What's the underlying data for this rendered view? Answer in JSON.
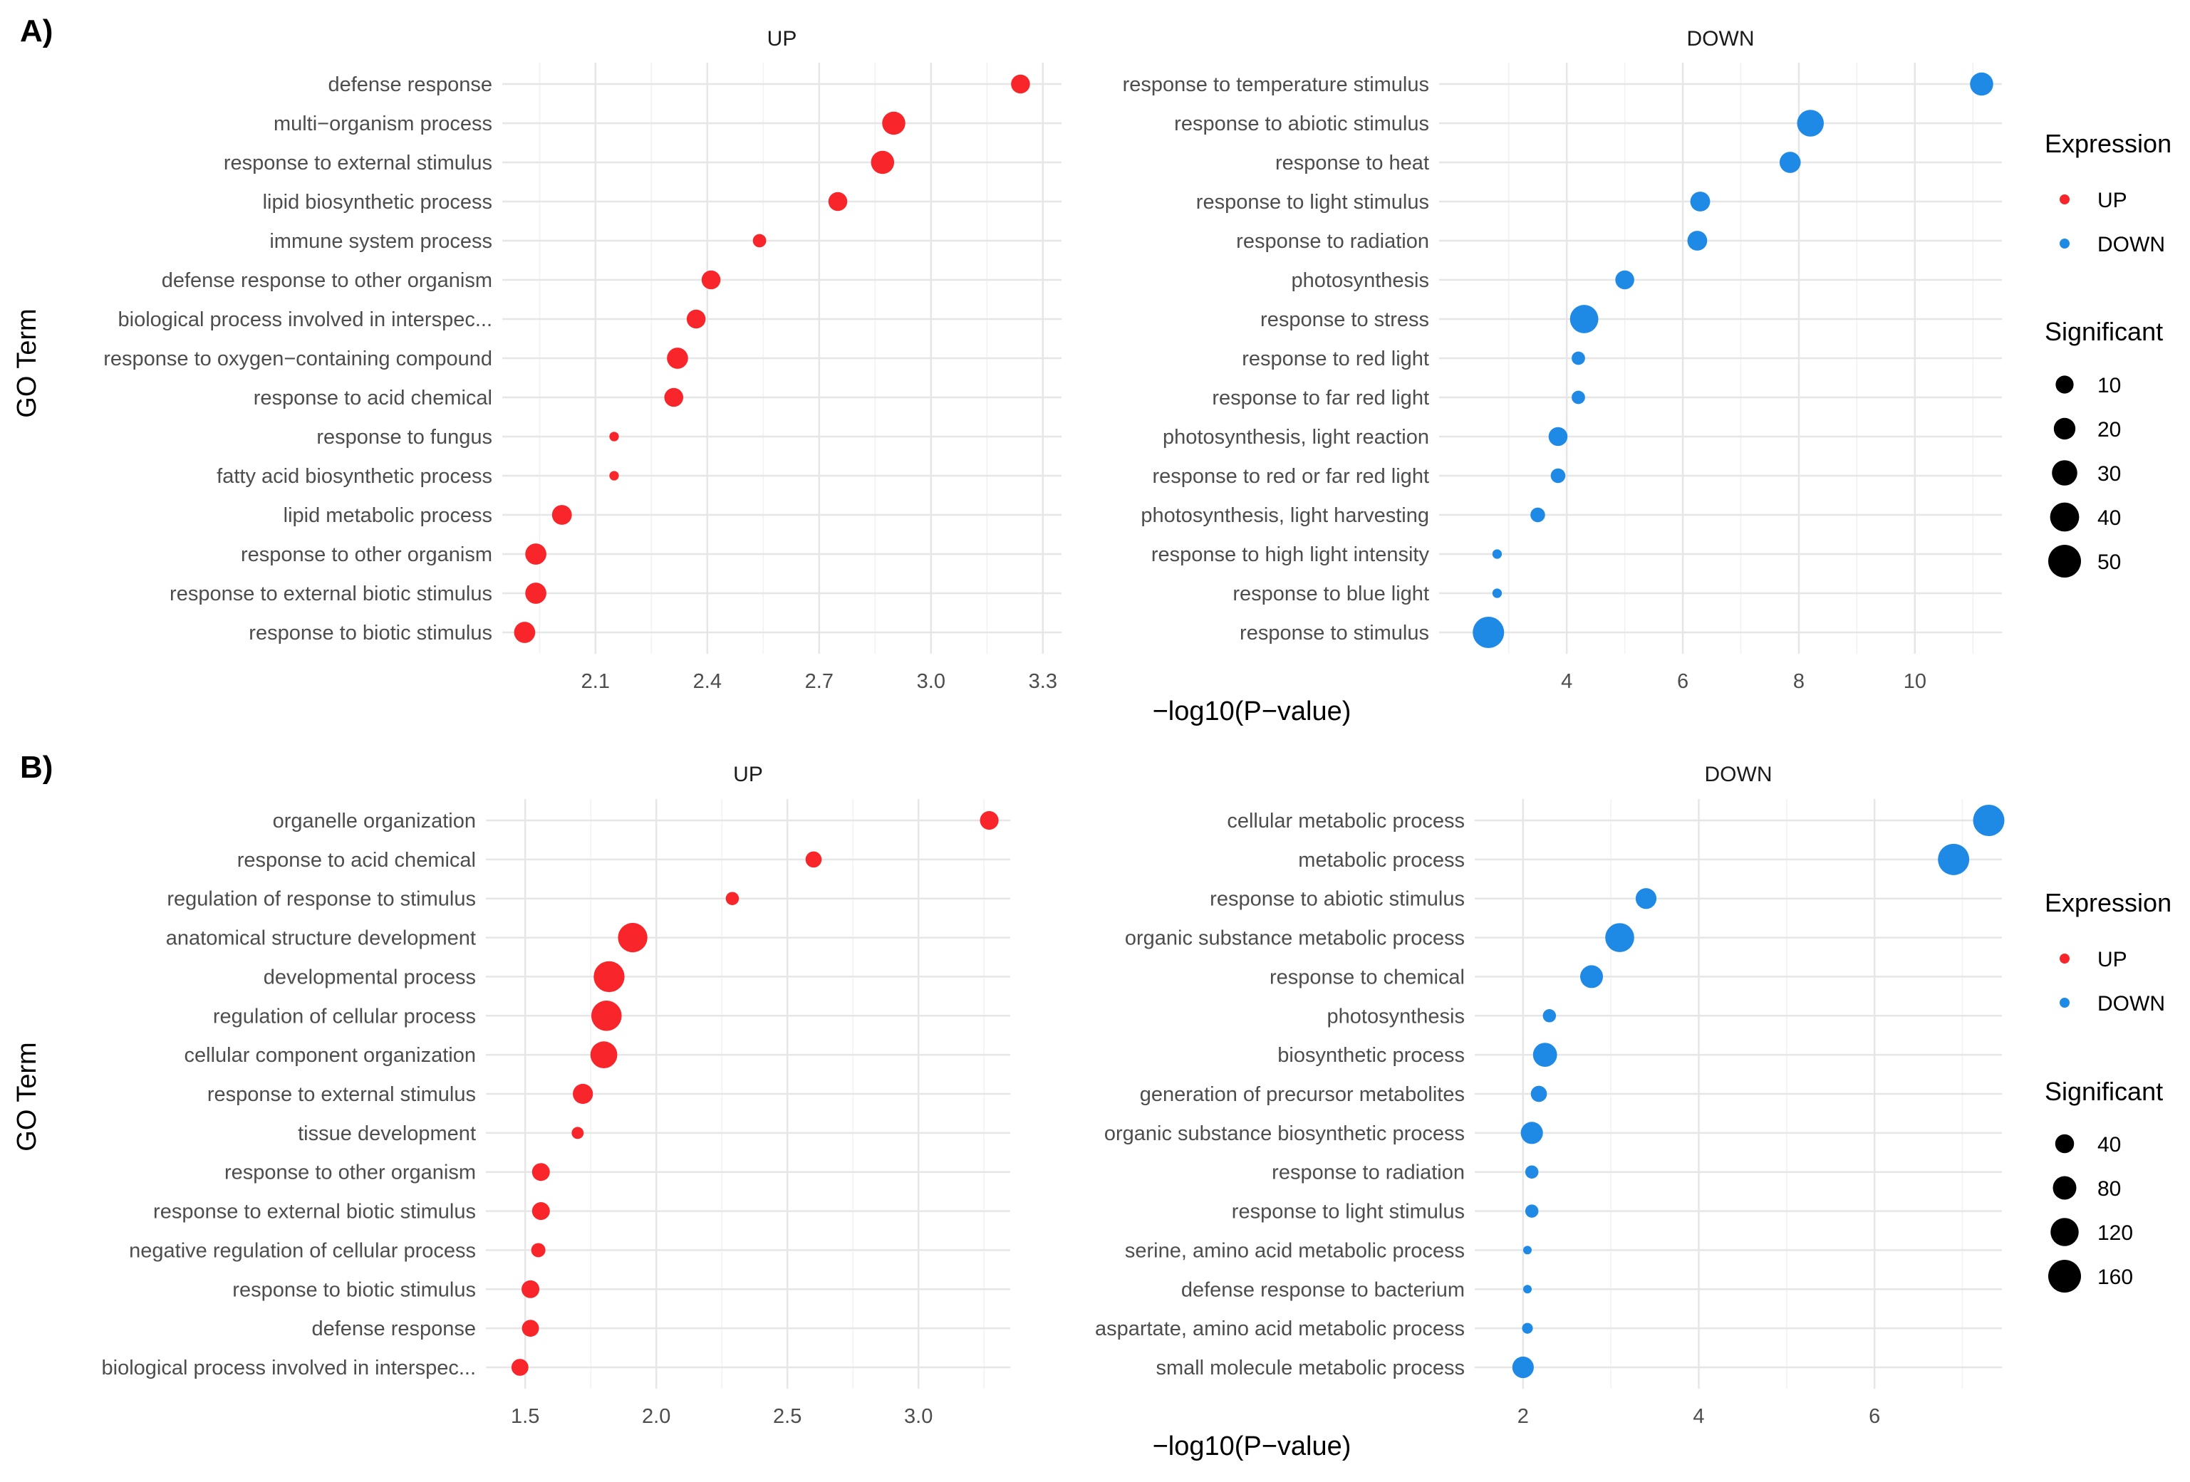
{
  "figure": {
    "panel_labels": [
      "A)",
      "B)"
    ]
  },
  "chart_data": [
    {
      "type": "scatter",
      "panel": "A)",
      "facet": "UP",
      "xlabel": "−log10(P−value)",
      "ylabel": "GO Term",
      "xlim": [
        1.85,
        3.35
      ],
      "xticks": [
        "2.1",
        "2.4",
        "2.7",
        "3.0",
        "3.3"
      ],
      "color": "#f8262b",
      "categories": [
        "defense response",
        "multi−organism process",
        "response to external stimulus",
        "lipid biosynthetic process",
        "immune system process",
        "defense response to other organism",
        "biological process involved in interspec...",
        "response to oxygen−containing compound",
        "response to acid chemical",
        "response to fungus",
        "fatty acid biosynthetic process",
        "lipid metabolic process",
        "response to other organism",
        "response to external biotic stimulus",
        "response to biotic stimulus"
      ],
      "x": [
        3.24,
        2.9,
        2.87,
        2.75,
        2.54,
        2.41,
        2.37,
        2.32,
        2.31,
        2.15,
        2.15,
        2.01,
        1.94,
        1.94,
        1.91
      ],
      "size": [
        20,
        30,
        30,
        20,
        10,
        20,
        20,
        25,
        20,
        5,
        5,
        22,
        25,
        25,
        25
      ]
    },
    {
      "type": "scatter",
      "panel": "A)",
      "facet": "DOWN",
      "xlabel": "−log10(P−value)",
      "ylabel": "GO Term",
      "xlim": [
        1.8,
        11.5
      ],
      "xticks": [
        "4",
        "6",
        "8",
        "10"
      ],
      "color": "#1f89e6",
      "categories": [
        "response to temperature stimulus",
        "response to abiotic stimulus",
        "response to heat",
        "response to light stimulus",
        "response to radiation",
        "photosynthesis",
        "response to stress",
        "response to red light",
        "response to far red light",
        "photosynthesis, light reaction",
        "response to red or far red light",
        "photosynthesis, light harvesting",
        "response to high light intensity",
        "response to blue light",
        "response to stimulus"
      ],
      "x": [
        11.15,
        8.2,
        7.85,
        6.3,
        6.25,
        5.0,
        4.3,
        4.2,
        4.2,
        3.85,
        3.85,
        3.5,
        2.8,
        2.8,
        2.65
      ],
      "size": [
        30,
        40,
        25,
        22,
        22,
        20,
        45,
        10,
        10,
        20,
        12,
        12,
        5,
        5,
        55
      ]
    },
    {
      "type": "scatter",
      "panel": "B)",
      "facet": "UP",
      "xlabel": "−log10(P−value)",
      "ylabel": "GO Term",
      "xlim": [
        1.35,
        3.35
      ],
      "xticks": [
        "1.5",
        "2.0",
        "2.5",
        "3.0"
      ],
      "color": "#f8262b",
      "categories": [
        "organelle organization",
        "response to acid chemical",
        "regulation of response to stimulus",
        "anatomical structure development",
        "developmental process",
        "regulation of cellular process",
        "cellular component organization",
        "response to external stimulus",
        "tissue development",
        "response to other organism",
        "response to external biotic stimulus",
        "negative regulation of cellular process",
        "response to biotic stimulus",
        "defense response",
        "biological process involved in interspec..."
      ],
      "x": [
        3.27,
        2.6,
        2.29,
        1.91,
        1.82,
        1.81,
        1.8,
        1.72,
        1.7,
        1.56,
        1.56,
        1.55,
        1.52,
        1.52,
        1.48
      ],
      "size": [
        60,
        45,
        30,
        150,
        165,
        160,
        125,
        70,
        25,
        55,
        55,
        35,
        55,
        50,
        50
      ]
    },
    {
      "type": "scatter",
      "panel": "B)",
      "facet": "DOWN",
      "xlabel": "−log10(P−value)",
      "ylabel": "GO Term",
      "xlim": [
        1.45,
        7.45
      ],
      "xticks": [
        "2",
        "4",
        "6"
      ],
      "color": "#1f89e6",
      "categories": [
        "cellular metabolic process",
        "metabolic process",
        "response to abiotic stimulus",
        "organic substance metabolic process",
        "response to chemical",
        "photosynthesis",
        "biosynthetic process",
        "generation of precursor metabolites",
        "organic substance biosynthetic process",
        "response to radiation",
        "response to light stimulus",
        "serine, amino acid metabolic process",
        "defense response to bacterium",
        "aspartate, amino acid metabolic process",
        "small molecule metabolic process"
      ],
      "x": [
        7.3,
        6.9,
        3.4,
        3.1,
        2.78,
        2.3,
        2.25,
        2.18,
        2.1,
        2.1,
        2.1,
        2.05,
        2.05,
        2.05,
        2.0
      ],
      "size": [
        170,
        170,
        75,
        145,
        90,
        30,
        100,
        45,
        85,
        30,
        30,
        12,
        12,
        20,
        80
      ]
    }
  ],
  "legends": [
    {
      "panel": "A)",
      "expression_title": "Expression",
      "expression_items": [
        {
          "label": "UP",
          "color": "#f8262b"
        },
        {
          "label": "DOWN",
          "color": "#1f89e6"
        }
      ],
      "size_title": "Significant",
      "size_items": [
        {
          "label": "10",
          "value": 10
        },
        {
          "label": "20",
          "value": 20
        },
        {
          "label": "30",
          "value": 30
        },
        {
          "label": "40",
          "value": 40
        },
        {
          "label": "50",
          "value": 50
        }
      ]
    },
    {
      "panel": "B)",
      "expression_title": "Expression",
      "expression_items": [
        {
          "label": "UP",
          "color": "#f8262b"
        },
        {
          "label": "DOWN",
          "color": "#1f89e6"
        }
      ],
      "size_title": "Significant",
      "size_items": [
        {
          "label": "40",
          "value": 40
        },
        {
          "label": "80",
          "value": 80
        },
        {
          "label": "120",
          "value": 120
        },
        {
          "label": "160",
          "value": 160
        }
      ]
    }
  ]
}
